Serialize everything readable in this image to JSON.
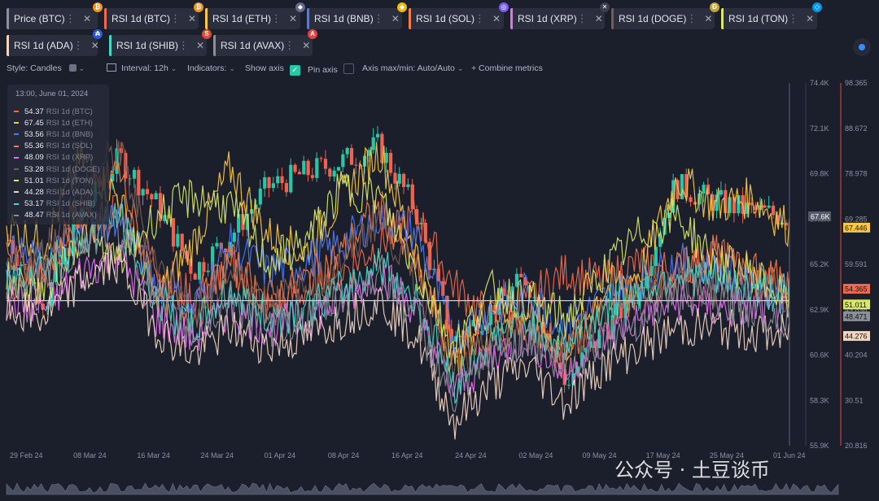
{
  "tabs": [
    {
      "label": "Price (BTC)",
      "color": "#8b90a3",
      "badge": "₿",
      "badge_color": "#f7931a"
    },
    {
      "label": "RSI 1d (BTC)",
      "color": "#f06b4d",
      "badge": "₿",
      "badge_color": "#f7931a"
    },
    {
      "label": "RSI 1d (ETH)",
      "color": "#f8c84a",
      "badge": "◆",
      "badge_color": "#626890"
    },
    {
      "label": "RSI 1d (BNB)",
      "color": "#4f78f0",
      "badge": "◆",
      "badge_color": "#f0b90b"
    },
    {
      "label": "RSI 1d (SOL)",
      "color": "#f07f4a",
      "badge": "◎",
      "badge_color": "#7a5cf0"
    },
    {
      "label": "RSI 1d (XRP)",
      "color": "#e76ff0",
      "badge": "✕",
      "badge_color": "#3a3f50"
    },
    {
      "label": "RSI 1d (DOGE)",
      "color": "#7a5a52",
      "badge": "Ð",
      "badge_color": "#c2a633"
    },
    {
      "label": "RSI 1d (TON)",
      "color": "#d8e86a",
      "badge": "◇",
      "badge_color": "#0098ea"
    },
    {
      "label": "RSI 1d (ADA)",
      "color": "#f3d6c0",
      "badge": "₳",
      "badge_color": "#2a5ada"
    },
    {
      "label": "RSI 1d (SHIB)",
      "color": "#46d8c4",
      "badge": "S",
      "badge_color": "#e0492f"
    },
    {
      "label": "RSI 1d (AVAX)",
      "color": "#8b8e98",
      "badge": "A",
      "badge_color": "#e84142"
    }
  ],
  "toolbar": {
    "style_label": "Style: Candles",
    "interval_label": "Interval: 12h",
    "indicators_label": "Indicators:",
    "show_axis_label": "Show axis",
    "pin_axis_label": "Pin axis",
    "axis_minmax_label": "Axis max/min: Auto/Auto",
    "combine_label": "+ Combine metrics",
    "accent_color": "#26c6a6"
  },
  "legend": {
    "date": "13:00, June 01, 2024",
    "rows": [
      {
        "value": "54.37",
        "name": "RSI 1d (BTC)",
        "color": "#f06b4d"
      },
      {
        "value": "67.45",
        "name": "RSI 1d (ETH)",
        "color": "#f8c84a"
      },
      {
        "value": "53.56",
        "name": "RSI 1d (BNB)",
        "color": "#4f78f0"
      },
      {
        "value": "55.36",
        "name": "RSI 1d (SOL)",
        "color": "#f07f4a"
      },
      {
        "value": "48.09",
        "name": "RSI 1d (XRP)",
        "color": "#e76ff0"
      },
      {
        "value": "53.28",
        "name": "RSI 1d (DOGE)",
        "color": "#7a5a52"
      },
      {
        "value": "51.01",
        "name": "RSI 1d (TON)",
        "color": "#d8e86a"
      },
      {
        "value": "44.28",
        "name": "RSI 1d (ADA)",
        "color": "#f3d6c0"
      },
      {
        "value": "53.17",
        "name": "RSI 1d (SHIB)",
        "color": "#46d8c4"
      },
      {
        "value": "48.47",
        "name": "RSI 1d (AVAX)",
        "color": "#8b8e98"
      }
    ]
  },
  "watermark": "公众号 · 土豆谈币",
  "chart_data": {
    "type": "line",
    "x_ticks": [
      "29 Feb 24",
      "08 Mar 24",
      "16 Mar 24",
      "24 Mar 24",
      "01 Apr 24",
      "08 Apr 24",
      "16 Apr 24",
      "24 Apr 24",
      "02 May 24",
      "09 May 24",
      "17 May 24",
      "25 May 24",
      "01 Jun 24"
    ],
    "price_axis": {
      "ticks": [
        "74.4K",
        "72.1K",
        "69.8K",
        "67.6K",
        "65.2K",
        "62.9K",
        "60.6K",
        "58.3K",
        "55.9K"
      ],
      "min": 55900,
      "max": 74400,
      "current_label": "67.6K"
    },
    "rsi_axis": {
      "ticks": [
        "98.365",
        "88.672",
        "78.978",
        "69.285",
        "59.591",
        "49.898",
        "40.204",
        "30.51",
        "20.816"
      ],
      "min": 20.816,
      "max": 98.365
    },
    "end_labels": [
      {
        "value": "67.446",
        "color": "#f8c84a"
      },
      {
        "value": "54.365",
        "color": "#f06b4d"
      },
      {
        "value": "51.011",
        "color": "#d8e86a"
      },
      {
        "value": "48.471",
        "color": "#8b8e98"
      },
      {
        "value": "44.276",
        "color": "#f3d6c0"
      }
    ],
    "series": [
      {
        "name": "RSI 1d (BTC)",
        "color": "#f06b4d",
        "values": [
          55,
          58,
          66,
          72,
          60,
          52,
          60,
          50,
          54,
          58,
          64,
          70,
          55,
          48,
          52,
          58,
          56,
          60,
          58,
          62,
          56,
          54.37
        ]
      },
      {
        "name": "RSI 1d (ETH)",
        "color": "#f8c84a",
        "values": [
          68,
          64,
          82,
          74,
          52,
          64,
          80,
          66,
          62,
          74,
          84,
          62,
          38,
          52,
          46,
          42,
          54,
          58,
          78,
          72,
          74,
          67.45
        ]
      },
      {
        "name": "RSI 1d (BNB)",
        "color": "#4f78f0",
        "values": [
          62,
          60,
          66,
          70,
          56,
          50,
          64,
          58,
          60,
          64,
          70,
          66,
          44,
          50,
          54,
          46,
          52,
          56,
          60,
          58,
          56,
          53.56
        ]
      },
      {
        "name": "RSI 1d (SOL)",
        "color": "#f07f4a",
        "values": [
          60,
          58,
          72,
          80,
          54,
          48,
          60,
          52,
          56,
          62,
          72,
          58,
          40,
          44,
          48,
          40,
          50,
          54,
          58,
          62,
          58,
          55.36
        ]
      },
      {
        "name": "RSI 1d (XRP)",
        "color": "#e76ff0",
        "values": [
          52,
          50,
          58,
          62,
          48,
          44,
          50,
          46,
          48,
          52,
          58,
          50,
          32,
          40,
          44,
          36,
          44,
          48,
          52,
          50,
          50,
          48.09
        ]
      },
      {
        "name": "RSI 1d (DOGE)",
        "color": "#7a5a52",
        "values": [
          58,
          62,
          76,
          84,
          60,
          48,
          58,
          52,
          54,
          60,
          70,
          56,
          36,
          42,
          46,
          40,
          48,
          52,
          56,
          54,
          55,
          53.28
        ]
      },
      {
        "name": "RSI 1d (TON)",
        "color": "#d8e86a",
        "values": [
          56,
          54,
          66,
          60,
          70,
          74,
          72,
          60,
          64,
          76,
          74,
          58,
          42,
          54,
          52,
          48,
          58,
          66,
          70,
          60,
          58,
          51.01
        ]
      },
      {
        "name": "RSI 1d (ADA)",
        "color": "#f3d6c0",
        "values": [
          50,
          48,
          56,
          60,
          46,
          40,
          46,
          42,
          44,
          48,
          52,
          44,
          26,
          34,
          38,
          30,
          38,
          42,
          46,
          46,
          45,
          44.28
        ]
      },
      {
        "name": "RSI 1d (SHIB)",
        "color": "#46d8c4",
        "values": [
          56,
          60,
          64,
          70,
          52,
          46,
          54,
          48,
          50,
          54,
          60,
          52,
          34,
          44,
          48,
          42,
          50,
          54,
          58,
          56,
          54,
          53.17
        ]
      },
      {
        "name": "RSI 1d (AVAX)",
        "color": "#8b8e98",
        "values": [
          54,
          56,
          64,
          68,
          52,
          44,
          52,
          46,
          48,
          52,
          58,
          48,
          30,
          40,
          44,
          36,
          44,
          48,
          54,
          52,
          50,
          48.47
        ]
      }
    ],
    "price_candles": [
      66400,
      63200,
      67800,
      70600,
      68200,
      64800,
      66600,
      69100,
      69800,
      70400,
      71200,
      67900,
      61200,
      62800,
      64500,
      59000,
      61600,
      63800,
      69200,
      68400,
      67900,
      67600
    ],
    "price_line_value": 63300
  }
}
